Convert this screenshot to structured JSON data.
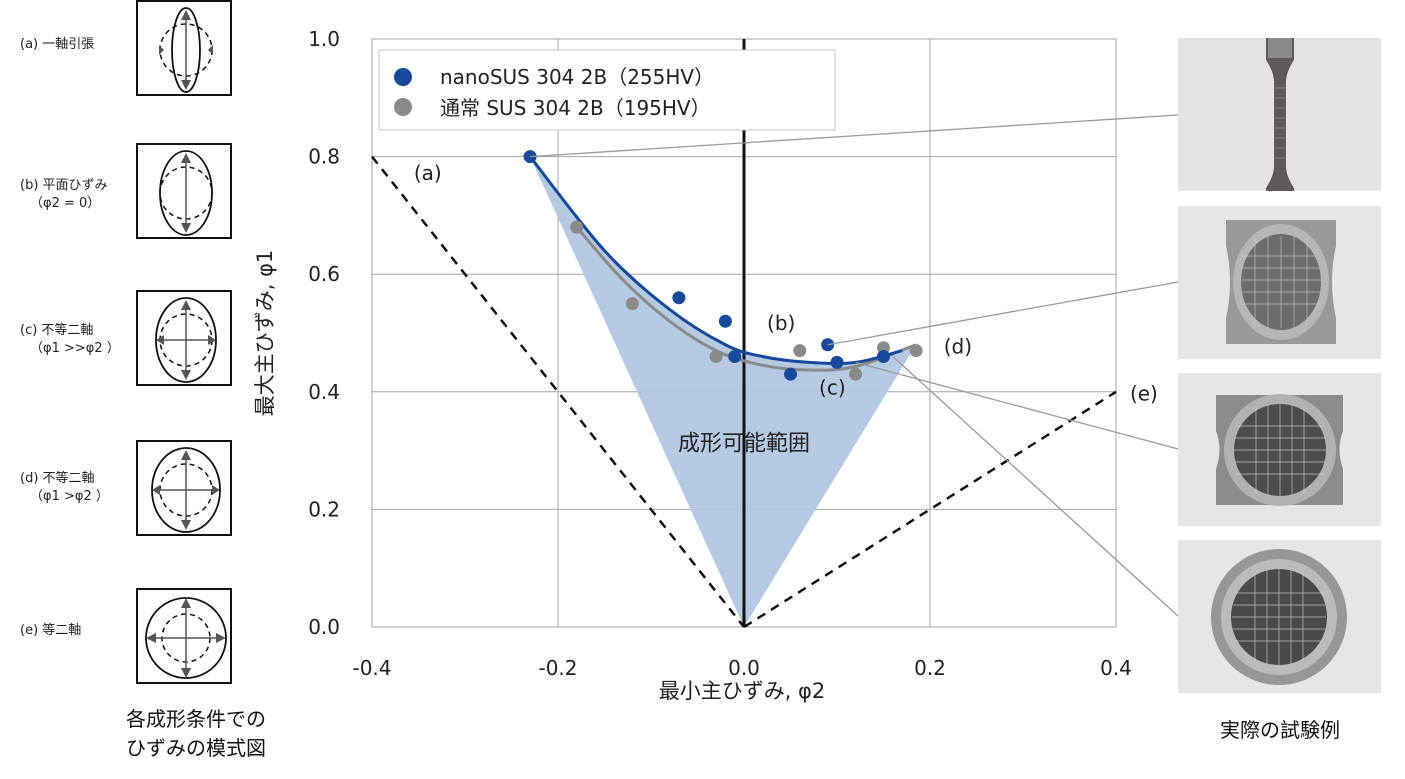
{
  "conditions": {
    "a": {
      "label": "(a) 一軸引張",
      "sub": ""
    },
    "b": {
      "label": "(b) 平面ひずみ",
      "sub": "（φ2 = 0）"
    },
    "c": {
      "label": "(c) 不等二軸",
      "sub": "（φ1 >>φ2 ）"
    },
    "d": {
      "label": "(d) 不等二軸",
      "sub": "（φ1 >φ2 ）"
    },
    "e": {
      "label": "(e) 等二軸",
      "sub": ""
    }
  },
  "caption_left_line1": "各成形条件での",
  "caption_left_line2": "ひずみの模式図",
  "caption_right": "実際の試験例",
  "colors": {
    "nano": "#174a9c",
    "normal": "#8a8a8a",
    "fill": "#b2c7e2",
    "grid": "#a6a6a6"
  },
  "chart_data": {
    "type": "scatter",
    "xlabel": "最小主ひずみ, φ2",
    "ylabel": "最大主ひずみ, φ1",
    "xlim": [
      -0.4,
      0.4
    ],
    "ylim": [
      0.0,
      1.0
    ],
    "x_ticks": [
      "-0.4",
      "-0.2",
      "0.0",
      "0.2",
      "0.4"
    ],
    "y_ticks": [
      "0.0",
      "0.2",
      "0.4",
      "0.6",
      "0.8",
      "1.0"
    ],
    "grid": true,
    "legend_position": "top-left",
    "region_label": "成形可能範囲",
    "series": [
      {
        "name": "nanoSUS  304 2B（255HV）",
        "x": [
          -0.23,
          -0.07,
          -0.02,
          -0.01,
          0.05,
          0.09,
          0.1,
          0.15
        ],
        "y": [
          0.8,
          0.56,
          0.52,
          0.46,
          0.43,
          0.48,
          0.45,
          0.46
        ],
        "curve_x": [
          -0.23,
          -0.15,
          -0.08,
          -0.02,
          0.02,
          0.07,
          0.12,
          0.17
        ],
        "curve_y": [
          0.8,
          0.64,
          0.54,
          0.48,
          0.46,
          0.45,
          0.45,
          0.47
        ]
      },
      {
        "name": "通常 SUS  304 2B（195HV）",
        "x": [
          -0.18,
          -0.12,
          -0.03,
          0.06,
          0.12,
          0.15,
          0.185
        ],
        "y": [
          0.68,
          0.55,
          0.46,
          0.47,
          0.43,
          0.475,
          0.47
        ],
        "curve_x": [
          -0.18,
          -0.13,
          -0.08,
          -0.03,
          0.02,
          0.07,
          0.12,
          0.185
        ],
        "curve_y": [
          0.68,
          0.59,
          0.52,
          0.47,
          0.445,
          0.437,
          0.443,
          0.48
        ]
      }
    ],
    "reference_lines": [
      {
        "x": [
          -0.4,
          0.0
        ],
        "y": [
          0.8,
          0.0
        ],
        "style": "dashed"
      },
      {
        "x": [
          0.0,
          0.4
        ],
        "y": [
          0.0,
          0.4
        ],
        "style": "dashed"
      }
    ],
    "annotations": [
      {
        "text": "(a)",
        "x": -0.34,
        "y": 0.76
      },
      {
        "text": "(b)",
        "x": 0.04,
        "y": 0.505
      },
      {
        "text": "(c)",
        "x": 0.095,
        "y": 0.395
      },
      {
        "text": "(d)",
        "x": 0.23,
        "y": 0.465
      },
      {
        "text": "(e)",
        "x": 0.43,
        "y": 0.385
      }
    ]
  }
}
